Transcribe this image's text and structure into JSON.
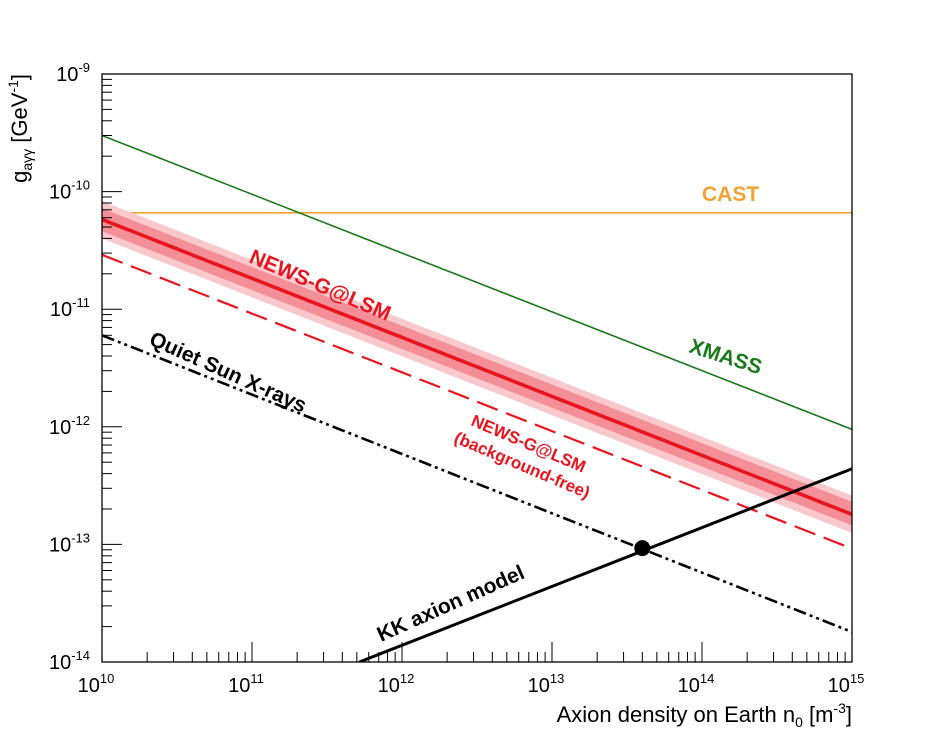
{
  "chart_data": {
    "type": "line",
    "xlabel": "Axion density on Earth n",
    "xlabel_sub": "0",
    "xlabel_unit_pre": " [m",
    "xlabel_unit_exp": "-3",
    "xlabel_unit_post": "]",
    "ylabel": "g",
    "ylabel_sub": "aγγ",
    "ylabel_unit_pre": " [GeV",
    "ylabel_unit_exp": "-1",
    "ylabel_unit_post": "]",
    "x_scale": "log",
    "y_scale": "log",
    "xlim": [
      10000000000.0,
      1000000000000000.0
    ],
    "ylim": [
      1e-14,
      1e-09
    ],
    "x_ticks": [
      {
        "base": "10",
        "exp": "10",
        "value": 10000000000.0
      },
      {
        "base": "10",
        "exp": "11",
        "value": 100000000000.0
      },
      {
        "base": "10",
        "exp": "12",
        "value": 1000000000000.0
      },
      {
        "base": "10",
        "exp": "13",
        "value": 10000000000000.0
      },
      {
        "base": "10",
        "exp": "14",
        "value": 100000000000000.0
      },
      {
        "base": "10",
        "exp": "15",
        "value": 1000000000000000.0
      }
    ],
    "y_ticks": [
      {
        "base": "10",
        "exp": "-9",
        "value": 1e-09
      },
      {
        "base": "10",
        "exp": "-10",
        "value": 1e-10
      },
      {
        "base": "10",
        "exp": "-11",
        "value": 1e-11
      },
      {
        "base": "10",
        "exp": "-12",
        "value": 1e-12
      },
      {
        "base": "10",
        "exp": "-13",
        "value": 1e-13
      },
      {
        "base": "10",
        "exp": "-14",
        "value": 1e-14
      }
    ],
    "grid": false,
    "series": [
      {
        "name": "CAST",
        "color": "#f5a030",
        "style": "solid",
        "x": [
          10000000000.0,
          1000000000000000.0
        ],
        "y": [
          6.6e-11,
          6.6e-11
        ]
      },
      {
        "name": "XMASS",
        "color": "#1a7a1a",
        "style": "solid",
        "x": [
          10000000000.0,
          1000000000000000.0
        ],
        "y": [
          3e-10,
          9.5e-13
        ]
      },
      {
        "name": "NEWS-G@LSM",
        "color": "#e8141e",
        "style": "solid-band",
        "x": [
          10000000000.0,
          1000000000000000.0
        ],
        "y": [
          5.8e-11,
          1.8e-13
        ],
        "band_inner": {
          "upper": [
            7.2e-11,
            2.3e-13
          ],
          "lower": [
            4.6e-11,
            1.45e-13
          ]
        },
        "band_outer": {
          "upper": [
            8.3e-11,
            2.6e-13
          ],
          "lower": [
            4e-11,
            1.25e-13
          ]
        }
      },
      {
        "name": "NEWS-G@LSM (background-free)",
        "color": "#e8141e",
        "style": "dashed",
        "x": [
          10000000000.0,
          1000000000000000.0
        ],
        "y": [
          2.9e-11,
          9.2e-14
        ]
      },
      {
        "name": "Quiet Sun X-rays",
        "color": "#000000",
        "style": "dash-dot-dot",
        "x": [
          10000000000.0,
          1000000000000000.0
        ],
        "y": [
          6e-12,
          1.8e-14
        ]
      },
      {
        "name": "KK axion model",
        "color": "#000000",
        "style": "solid",
        "x": [
          520000000000.0,
          1000000000000000.0
        ],
        "y": [
          1e-14,
          4.4e-13
        ]
      }
    ],
    "markers": [
      {
        "x": 40000000000000.0,
        "y": 9.3e-14,
        "color": "#000000"
      }
    ],
    "annotations": {
      "cast": "CAST",
      "xmass": "XMASS",
      "newsg": "NEWS-G@LSM",
      "newsg_bf_line1": "NEWS-G@LSM",
      "newsg_bf_line2": "(background-free)",
      "quiet_sun": "Quiet Sun X-rays",
      "kk": "KK axion model"
    }
  }
}
